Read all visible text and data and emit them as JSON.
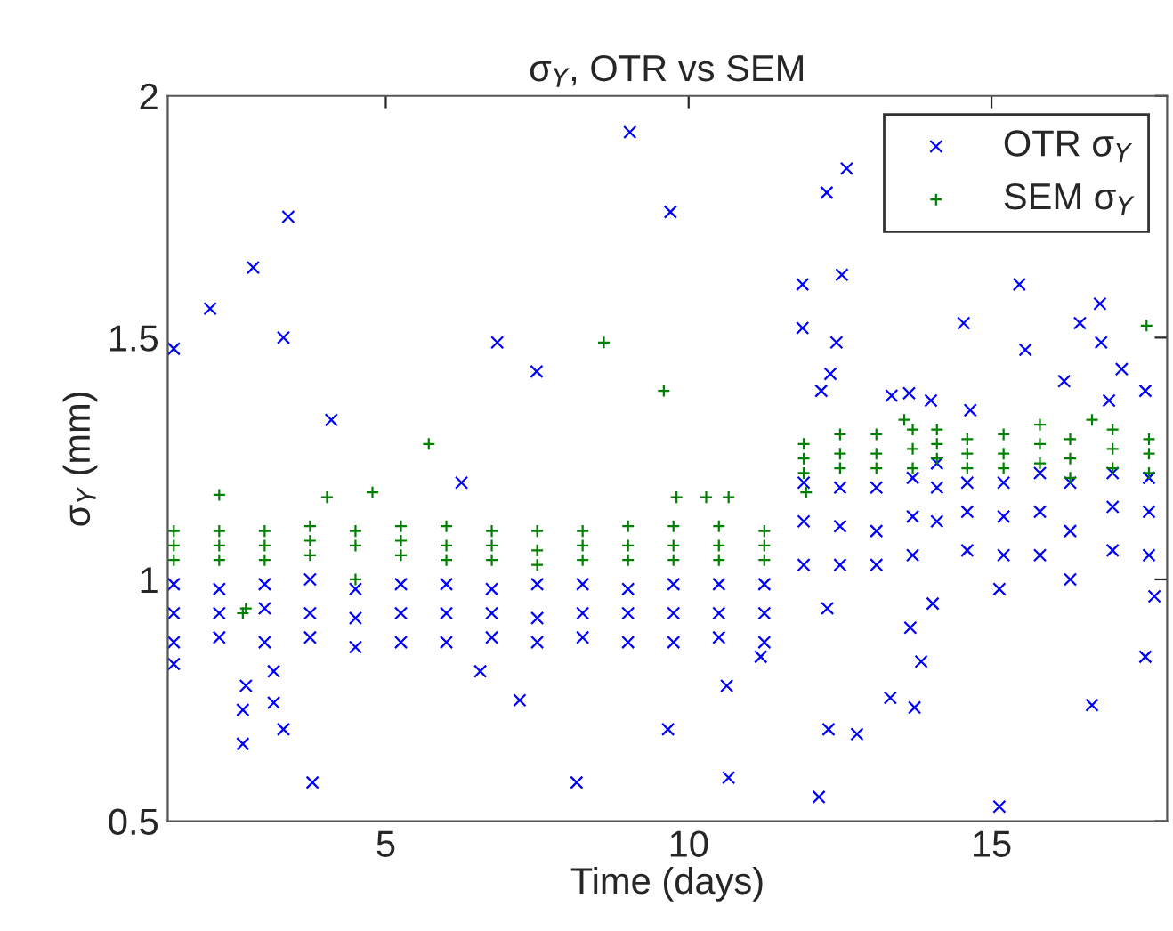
{
  "chart_data": {
    "type": "scatter",
    "title": "σ$_{Y}$, OTR vs SEM",
    "xlabel": "Time (days)",
    "ylabel": "σ$_{Y}$ (mm)",
    "xlim": [
      1.4,
      17.9
    ],
    "xticks": [
      5,
      10,
      15
    ],
    "ylim": [
      0.5,
      2
    ],
    "yticks": [
      0.5,
      1,
      1.5,
      2
    ],
    "grid": false,
    "legend": "top right",
    "series": [
      {
        "name": "OTR σ$_{Y}$",
        "color": "#0000ff",
        "marker": "cross",
        "x": [
          1.5,
          2.1,
          2.81,
          3.39,
          3.31,
          4.1,
          6.25,
          6.84,
          7.49,
          9.03,
          9.7,
          11.88,
          11.88,
          12.28,
          12.61,
          12.53,
          12.44,
          12.34,
          12.19,
          13.35,
          13.64,
          14.0,
          14.54,
          14.65,
          15.46,
          15.56,
          16.2,
          16.46,
          16.81,
          16.79,
          17.15,
          16.94,
          17.54,
          1.5,
          2.64,
          2.64,
          2.69,
          3.15,
          3.31,
          3.15,
          3.79,
          6.56,
          7.21,
          8.15,
          9.66,
          10.63,
          10.66,
          11.19,
          12.15,
          12.31,
          12.78,
          13.33,
          13.73,
          13.84,
          13.66,
          14.03,
          15.13,
          15.13,
          16.66,
          17.54,
          17.69,
          12.29,
          1.5,
          2.25,
          3.0,
          3.75,
          4.5,
          5.25,
          6.0,
          6.75,
          7.5,
          8.25,
          9.0,
          9.75,
          10.5,
          11.25,
          1.5,
          2.25,
          3.0,
          3.75,
          4.5,
          5.25,
          6.0,
          6.75,
          7.5,
          8.25,
          9.0,
          9.75,
          10.5,
          11.25,
          1.5,
          2.25,
          3.0,
          3.75,
          4.5,
          5.25,
          6.0,
          6.75,
          7.5,
          8.25,
          9.0,
          9.75,
          10.5,
          11.25,
          11.9,
          12.5,
          13.1,
          13.7,
          14.1,
          14.6,
          15.2,
          15.8,
          16.3,
          17.0,
          17.6,
          11.9,
          12.5,
          13.1,
          13.7,
          14.1,
          14.6,
          15.2,
          15.8,
          16.3,
          17.0,
          17.6,
          11.9,
          12.5,
          13.1,
          13.7,
          14.1,
          14.6,
          15.2,
          15.8,
          16.3,
          17.0,
          17.6
        ],
        "values": [
          1.477,
          1.56,
          1.645,
          1.75,
          1.5,
          1.33,
          1.2,
          1.49,
          1.43,
          1.925,
          1.76,
          1.61,
          1.52,
          1.8,
          1.85,
          1.63,
          1.49,
          1.425,
          1.39,
          1.38,
          1.385,
          1.37,
          1.53,
          1.35,
          1.61,
          1.475,
          1.41,
          1.53,
          1.49,
          1.57,
          1.435,
          1.37,
          1.39,
          0.825,
          0.66,
          0.73,
          0.78,
          0.745,
          0.69,
          0.81,
          0.58,
          0.81,
          0.75,
          0.58,
          0.69,
          0.78,
          0.59,
          0.84,
          0.55,
          0.69,
          0.68,
          0.755,
          0.735,
          0.83,
          0.9,
          0.95,
          0.53,
          0.98,
          0.74,
          0.84,
          0.965,
          0.94,
          0.87,
          0.88,
          0.87,
          0.88,
          0.86,
          0.87,
          0.87,
          0.88,
          0.87,
          0.88,
          0.87,
          0.87,
          0.88,
          0.87,
          0.93,
          0.93,
          0.94,
          0.93,
          0.92,
          0.93,
          0.93,
          0.93,
          0.92,
          0.93,
          0.93,
          0.93,
          0.93,
          0.93,
          0.99,
          0.98,
          0.99,
          1.0,
          0.98,
          0.99,
          0.99,
          0.98,
          0.99,
          0.99,
          0.98,
          0.99,
          0.99,
          0.99,
          1.03,
          1.03,
          1.03,
          1.05,
          1.12,
          1.06,
          1.05,
          1.05,
          1.0,
          1.06,
          1.05,
          1.12,
          1.11,
          1.1,
          1.13,
          1.19,
          1.14,
          1.13,
          1.14,
          1.1,
          1.15,
          1.14,
          1.2,
          1.19,
          1.19,
          1.21,
          1.24,
          1.2,
          1.2,
          1.22,
          1.2,
          1.22,
          1.21
        ]
      },
      {
        "name": "SEM σ$_{Y}$",
        "color": "#008000",
        "marker": "plus",
        "x": [
          5.71,
          8.6,
          9.59,
          17.56,
          11.94,
          2.69,
          2.64,
          2.25,
          4.03,
          4.78,
          10.29,
          10.66,
          9.8,
          13.56,
          16.66,
          1.5,
          2.25,
          3.0,
          3.75,
          4.5,
          5.25,
          6.0,
          6.75,
          7.5,
          8.25,
          9.0,
          9.75,
          10.5,
          11.25,
          1.5,
          2.25,
          3.0,
          3.75,
          4.5,
          5.25,
          6.0,
          6.75,
          7.5,
          8.25,
          9.0,
          9.75,
          10.5,
          11.25,
          1.5,
          2.25,
          3.0,
          3.75,
          4.5,
          5.25,
          6.0,
          6.75,
          7.5,
          8.25,
          9.0,
          9.75,
          10.5,
          11.25,
          11.9,
          12.5,
          13.1,
          13.7,
          14.1,
          14.6,
          15.2,
          15.8,
          16.3,
          17.0,
          17.6,
          11.9,
          12.5,
          13.1,
          13.7,
          14.1,
          14.6,
          15.2,
          15.8,
          16.3,
          17.0,
          17.6,
          11.9,
          12.5,
          13.1,
          13.7,
          14.1,
          14.6,
          15.2,
          15.8,
          16.3,
          17.0,
          17.6
        ],
        "values": [
          1.28,
          1.49,
          1.39,
          1.525,
          1.18,
          0.94,
          0.93,
          1.175,
          1.17,
          1.18,
          1.17,
          1.17,
          1.17,
          1.33,
          1.33,
          1.04,
          1.04,
          1.04,
          1.05,
          1.0,
          1.05,
          1.04,
          1.04,
          1.03,
          1.04,
          1.04,
          1.04,
          1.04,
          1.04,
          1.07,
          1.07,
          1.07,
          1.08,
          1.07,
          1.08,
          1.07,
          1.07,
          1.06,
          1.07,
          1.07,
          1.07,
          1.07,
          1.07,
          1.1,
          1.1,
          1.1,
          1.11,
          1.1,
          1.11,
          1.11,
          1.1,
          1.1,
          1.1,
          1.11,
          1.11,
          1.11,
          1.1,
          1.22,
          1.23,
          1.23,
          1.23,
          1.25,
          1.23,
          1.23,
          1.24,
          1.21,
          1.23,
          1.22,
          1.25,
          1.26,
          1.26,
          1.27,
          1.28,
          1.26,
          1.26,
          1.28,
          1.25,
          1.27,
          1.26,
          1.28,
          1.3,
          1.3,
          1.31,
          1.31,
          1.29,
          1.3,
          1.32,
          1.29,
          1.31,
          1.29
        ]
      }
    ]
  }
}
